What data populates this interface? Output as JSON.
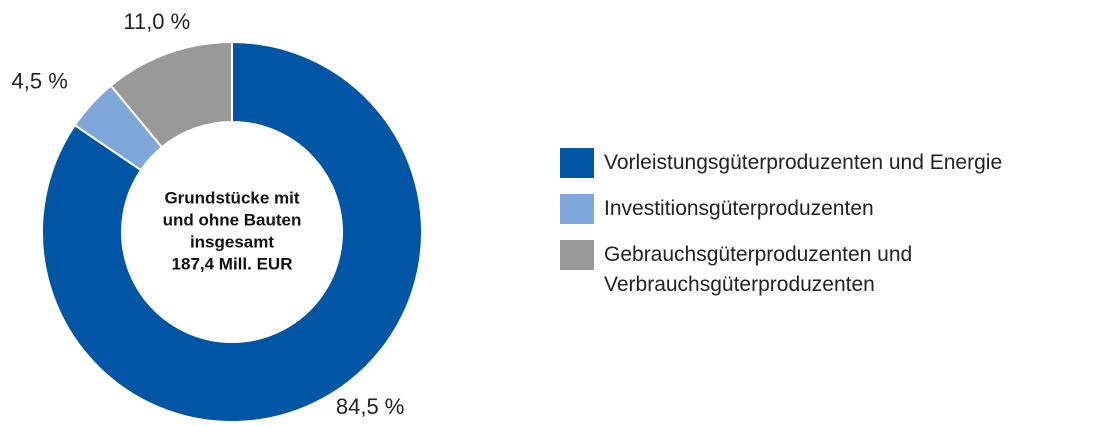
{
  "chart_data": {
    "type": "donut",
    "center_label": [
      "Grundstücke mit",
      "und ohne Bauten",
      "insgesamt",
      "187,4 Mill. EUR"
    ],
    "categories": [
      "Vorleistungsgüterproduzenten und Energie",
      "Investitionsgüterproduzenten",
      "Gebrauchsgüterproduzenten und Verbrauchsgüterproduzenten"
    ],
    "values": [
      84.5,
      4.5,
      11.0
    ],
    "value_labels": [
      "84,5 %",
      "4,5 %",
      "11,0 %"
    ],
    "colors": [
      "#0055a4",
      "#7fa7d9",
      "#999999"
    ],
    "legend": "right"
  }
}
